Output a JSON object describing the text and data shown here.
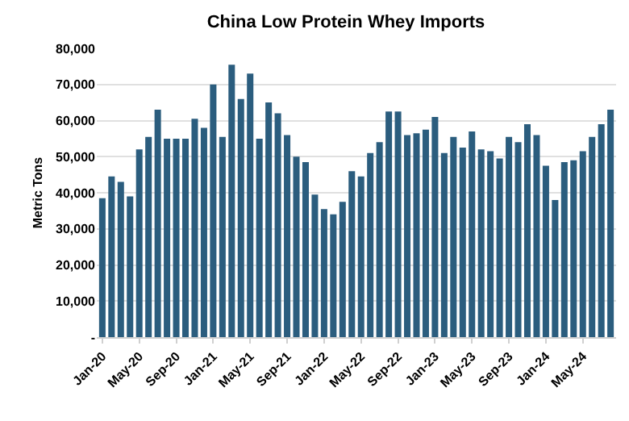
{
  "chart_data": {
    "type": "bar",
    "title": "China Low Protein Whey Imports",
    "ylabel": "Metric Tons",
    "categories": [
      "Jan-20",
      null,
      null,
      null,
      "May-20",
      null,
      null,
      null,
      "Sep-20",
      null,
      null,
      null,
      "Jan-21",
      null,
      null,
      null,
      "May-21",
      null,
      null,
      null,
      "Sep-21",
      null,
      null,
      null,
      "Jan-22",
      null,
      null,
      null,
      "May-22",
      null,
      null,
      null,
      "Sep-22",
      null,
      null,
      null,
      "Jan-23",
      null,
      null,
      null,
      "May-23",
      null,
      null,
      null,
      "Sep-23",
      null,
      null,
      null,
      "Jan-24",
      null,
      null,
      null,
      "May-24",
      null,
      null,
      null
    ],
    "values": [
      38500,
      44500,
      43000,
      39000,
      52000,
      55500,
      63000,
      55000,
      55000,
      55000,
      60500,
      58000,
      70000,
      55500,
      75500,
      66000,
      73000,
      55000,
      65000,
      62000,
      56000,
      50000,
      48500,
      39500,
      35500,
      34000,
      37500,
      46000,
      44500,
      51000,
      54000,
      62500,
      62500,
      56000,
      56500,
      57500,
      61000,
      51000,
      55500,
      52500,
      57000,
      52000,
      51500,
      49500,
      55500,
      54000,
      59000,
      56000,
      47500,
      38000,
      48500,
      49000,
      51500,
      55500,
      59000,
      63000
    ],
    "color": "#2b5d7e",
    "ylim": [
      0,
      80000
    ],
    "yticks": [
      {
        "value": 0,
        "label": "-"
      },
      {
        "value": 10000,
        "label": "10,000"
      },
      {
        "value": 20000,
        "label": "20,000"
      },
      {
        "value": 30000,
        "label": "30,000"
      },
      {
        "value": 40000,
        "label": "40,000"
      },
      {
        "value": 50000,
        "label": "50,000"
      },
      {
        "value": 60000,
        "label": "60,000"
      },
      {
        "value": 70000,
        "label": "70,000"
      },
      {
        "value": 80000,
        "label": "80,000"
      }
    ],
    "grid": "y"
  }
}
